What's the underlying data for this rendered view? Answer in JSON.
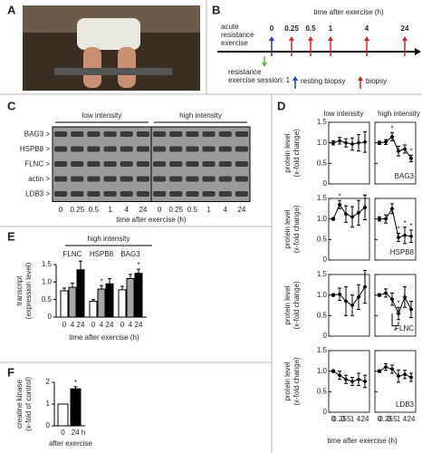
{
  "panels": {
    "A": {
      "label": "A"
    },
    "B": {
      "label": "B",
      "axis_title": "time after exercise (h)",
      "left_text": [
        "acute",
        "resistance",
        "exercise"
      ],
      "timepoints": [
        "0",
        "0.25",
        "0.5",
        "1",
        "4",
        "24"
      ],
      "session_text": [
        "resistance",
        "exercise session: 1"
      ],
      "legend": [
        "resting biopsy",
        "biopsy"
      ]
    },
    "C": {
      "label": "C",
      "groups": [
        "low intensity",
        "high intensity"
      ],
      "rows": [
        "BAG3 >",
        "HSPB8 >",
        "FLNC >",
        "actin >",
        "LDB3 >"
      ],
      "lanes": [
        "0",
        "0.25",
        "0.5",
        "1",
        "4",
        "24"
      ],
      "xlabel": "time after exercise (h)"
    },
    "D": {
      "label": "D",
      "type": "line",
      "columns": [
        "low intensity",
        "high intensity"
      ],
      "categories": [
        "0",
        "0.25",
        "0.5",
        "1",
        "4",
        "24"
      ],
      "ylim": [
        0,
        1.5
      ],
      "yticks": [
        0,
        0.5,
        {
          "value": 1,
          "label": "1.0"
        },
        1.5
      ],
      "ylabel": [
        "protein level",
        "(x-fold change)"
      ],
      "xlabel": "time after exercise (h)",
      "plots": [
        {
          "name": "BAG3",
          "series": [
            {
              "values": [
                1.0,
                1.05,
                1.0,
                0.97,
                1.0,
                1.02
              ],
              "errors": [
                0.05,
                0.08,
                0.1,
                0.15,
                0.2,
                0.25
              ],
              "significance": [
                null,
                null,
                null,
                null,
                null,
                null
              ]
            },
            {
              "values": [
                1.0,
                1.02,
                1.15,
                0.8,
                0.85,
                0.62
              ],
              "errors": [
                0.04,
                0.06,
                0.1,
                0.12,
                0.1,
                0.08
              ],
              "significance": [
                null,
                null,
                "*",
                null,
                null,
                "*"
              ]
            }
          ]
        },
        {
          "name": "HSPB8",
          "series": [
            {
              "values": [
                1.0,
                1.35,
                1.12,
                1.05,
                1.15,
                1.28
              ],
              "errors": [
                0.03,
                0.1,
                0.2,
                0.25,
                0.3,
                0.3
              ],
              "significance": [
                null,
                "*",
                null,
                null,
                null,
                null
              ]
            },
            {
              "values": [
                1.0,
                1.0,
                1.25,
                0.55,
                0.6,
                0.58
              ],
              "errors": [
                0.05,
                0.1,
                0.12,
                0.1,
                0.2,
                0.15
              ],
              "significance": [
                null,
                null,
                null,
                "*",
                "*",
                "*"
              ]
            }
          ]
        },
        {
          "name": "FLNC",
          "series": [
            {
              "values": [
                1.0,
                1.02,
                0.85,
                0.75,
                0.95,
                1.2
              ],
              "errors": [
                0.03,
                0.15,
                0.35,
                0.25,
                0.3,
                0.4
              ],
              "significance": [
                null,
                null,
                null,
                null,
                null,
                null
              ]
            },
            {
              "values": [
                1.0,
                1.05,
                0.9,
                0.55,
                0.95,
                0.65
              ],
              "errors": [
                0.03,
                0.1,
                0.15,
                0.15,
                0.25,
                0.2
              ],
              "significance": [
                null,
                null,
                null,
                "*",
                null,
                null
              ],
              "bracket_label": "*"
            }
          ]
        },
        {
          "name": "LDB3",
          "series": [
            {
              "values": [
                1.0,
                0.9,
                0.8,
                0.75,
                0.8,
                0.75
              ],
              "errors": [
                0.03,
                0.1,
                0.1,
                0.1,
                0.15,
                0.15
              ],
              "significance": [
                null,
                null,
                null,
                null,
                null,
                null
              ]
            },
            {
              "values": [
                1.0,
                1.1,
                1.05,
                0.88,
                0.92,
                0.85
              ],
              "errors": [
                0.03,
                0.08,
                0.1,
                0.15,
                0.1,
                0.1
              ],
              "significance": [
                null,
                null,
                null,
                null,
                null,
                null
              ]
            }
          ]
        }
      ]
    },
    "E": {
      "label": "E",
      "type": "bar",
      "title": "high intensity",
      "categories": [
        "FLNC",
        "HSPB8",
        "BAG3"
      ],
      "series": [
        {
          "name": "0",
          "color": "#ffffff",
          "values": [
            0.75,
            0.45,
            0.78
          ],
          "errors": [
            0.08,
            0.05,
            0.1
          ],
          "significance": [
            null,
            null,
            null
          ]
        },
        {
          "name": "4",
          "color": "#a6a6a6",
          "values": [
            0.85,
            0.8,
            1.1
          ],
          "errors": [
            0.12,
            0.1,
            0.12
          ],
          "significance": [
            null,
            "*",
            null
          ]
        },
        {
          "name": "24",
          "color": "#000000",
          "values": [
            1.35,
            0.95,
            1.25
          ],
          "errors": [
            0.25,
            0.15,
            0.12
          ],
          "significance": [
            null,
            null,
            "*"
          ]
        }
      ],
      "ylim": [
        0,
        1.5
      ],
      "yticks": [
        0,
        0.5,
        {
          "value": 1,
          "label": "1.0"
        },
        1.5
      ],
      "ylabel": [
        "transcript",
        "(expression level)"
      ],
      "xlabel": "time after exercise (h)"
    },
    "F": {
      "label": "F",
      "type": "bar",
      "categories": [
        "0",
        "24 h"
      ],
      "colors": [
        "#ffffff",
        "#000000"
      ],
      "values": [
        1.0,
        1.7
      ],
      "errors": [
        0,
        0.1
      ],
      "significance": [
        null,
        "*"
      ],
      "ylim": [
        0,
        2
      ],
      "yticks": [
        0,
        1,
        2
      ],
      "ylabel": [
        "creatine kinase",
        "(x-fold of control)"
      ],
      "xlabel": "after exercise"
    }
  }
}
